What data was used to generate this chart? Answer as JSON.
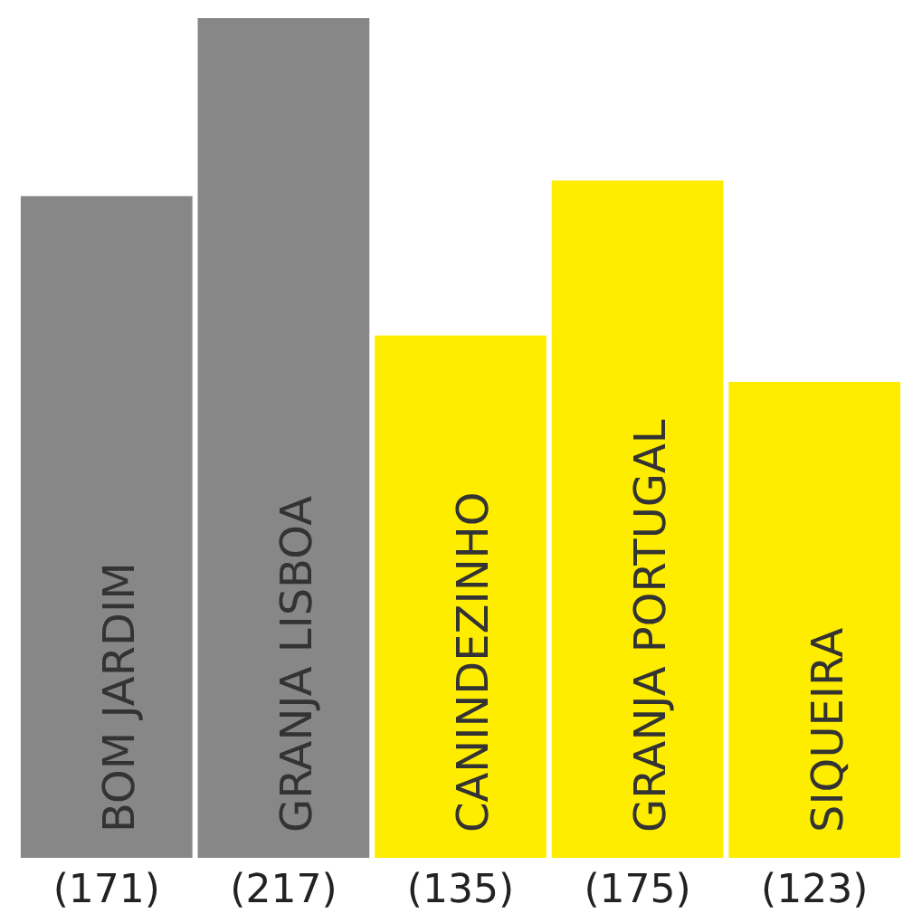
{
  "chart_data": {
    "type": "bar",
    "categories": [
      "BOM JARDIM",
      "GRANJA LISBOA",
      "CANINDEZINHO",
      "GRANJA PORTUGAL",
      "SIQUEIRA"
    ],
    "values": [
      171,
      217,
      135,
      175,
      123
    ],
    "colors": [
      "#878787",
      "#878787",
      "#ffed00",
      "#ffed00",
      "#ffed00"
    ],
    "value_labels": [
      "(171)",
      "(217)",
      "(135)",
      "(175)",
      "(123)"
    ],
    "grid": false,
    "legend": false
  }
}
